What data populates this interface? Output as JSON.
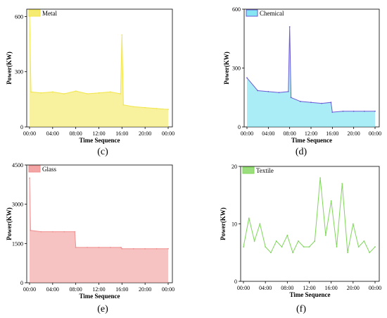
{
  "colors": {
    "metal": "#f2e64c",
    "chemical": "#6b5bd6",
    "chemical_fill": "#66dff0",
    "glass": "#f08f8f",
    "textile": "#7fd65a"
  },
  "chart_data": [
    {
      "type": "area",
      "panel_label": "(c)",
      "legend": "Metal",
      "xlabel": "Time Sequence",
      "ylabel": "Power(KW)",
      "x_ticks": [
        "00:00",
        "04:00",
        "08:00",
        "12:00",
        "16:00",
        "20:00",
        "00:00"
      ],
      "y_ticks": [
        "0",
        "300",
        "600"
      ],
      "ylim": [
        0,
        640
      ],
      "series": [
        {
          "x": [
            "00:00",
            "00:15",
            "02:00",
            "04:00",
            "06:00",
            "08:00",
            "10:00",
            "12:00",
            "14:00",
            "15:45",
            "16:00",
            "16:15",
            "18:00",
            "20:00",
            "22:00",
            "24:00"
          ],
          "values": [
            600,
            190,
            185,
            190,
            180,
            195,
            180,
            185,
            190,
            180,
            500,
            120,
            110,
            105,
            100,
            95
          ]
        }
      ]
    },
    {
      "type": "area",
      "panel_label": "(d)",
      "legend": "Chemical",
      "xlabel": "Time Sequence",
      "ylabel": "Power(KW)",
      "x_ticks": [
        "00:00",
        "04:00",
        "08:00",
        "12:00",
        "16:00",
        "20:00",
        "00:00"
      ],
      "y_ticks": [
        "0",
        "300",
        "600"
      ],
      "ylim": [
        0,
        600
      ],
      "series": [
        {
          "x": [
            "00:00",
            "02:00",
            "04:00",
            "06:00",
            "07:45",
            "08:00",
            "08:15",
            "10:00",
            "12:00",
            "14:00",
            "15:45",
            "16:00",
            "18:00",
            "20:00",
            "22:00",
            "24:00"
          ],
          "values": [
            250,
            185,
            180,
            175,
            180,
            510,
            150,
            130,
            125,
            120,
            125,
            75,
            80,
            80,
            80,
            80
          ]
        }
      ]
    },
    {
      "type": "area",
      "panel_label": "(e)",
      "legend": "Glass",
      "xlabel": "Time Sequence",
      "ylabel": "Power(KW)",
      "x_ticks": [
        "00:00",
        "04:00",
        "08:00",
        "12:00",
        "16:00",
        "20:00",
        "00:00"
      ],
      "y_ticks": [
        "0",
        "1500",
        "3000",
        "4500"
      ],
      "ylim": [
        0,
        4500
      ],
      "series": [
        {
          "x": [
            "00:00",
            "00:10",
            "02:00",
            "04:00",
            "06:00",
            "07:50",
            "08:00",
            "10:00",
            "12:00",
            "14:00",
            "15:50",
            "16:00",
            "18:00",
            "20:00",
            "22:00",
            "24:00"
          ],
          "values": [
            4000,
            2000,
            1950,
            1950,
            1950,
            1950,
            1350,
            1350,
            1350,
            1350,
            1350,
            1300,
            1300,
            1300,
            1300,
            1300
          ]
        }
      ]
    },
    {
      "type": "line",
      "panel_label": "(f)",
      "legend": "Textile",
      "xlabel": "Time Sequence",
      "ylabel": "Power(KW)",
      "x_ticks": [
        "00:00",
        "04:00",
        "08:00",
        "12:00",
        "16:00",
        "20:00",
        "00:00"
      ],
      "y_ticks": [
        "0",
        "10",
        "20"
      ],
      "ylim": [
        0,
        20
      ],
      "series": [
        {
          "x": [
            "00:00",
            "01:00",
            "02:00",
            "03:00",
            "04:00",
            "05:00",
            "06:00",
            "07:00",
            "08:00",
            "09:00",
            "10:00",
            "11:00",
            "12:00",
            "13:00",
            "14:00",
            "15:00",
            "16:00",
            "17:00",
            "18:00",
            "19:00",
            "20:00",
            "21:00",
            "22:00",
            "23:00",
            "24:00"
          ],
          "values": [
            6,
            11,
            7,
            10,
            6,
            5,
            7,
            6,
            8,
            5,
            7,
            6,
            6,
            7,
            18,
            8,
            14,
            6,
            17,
            5,
            10,
            6,
            7,
            5,
            6
          ]
        }
      ]
    }
  ]
}
